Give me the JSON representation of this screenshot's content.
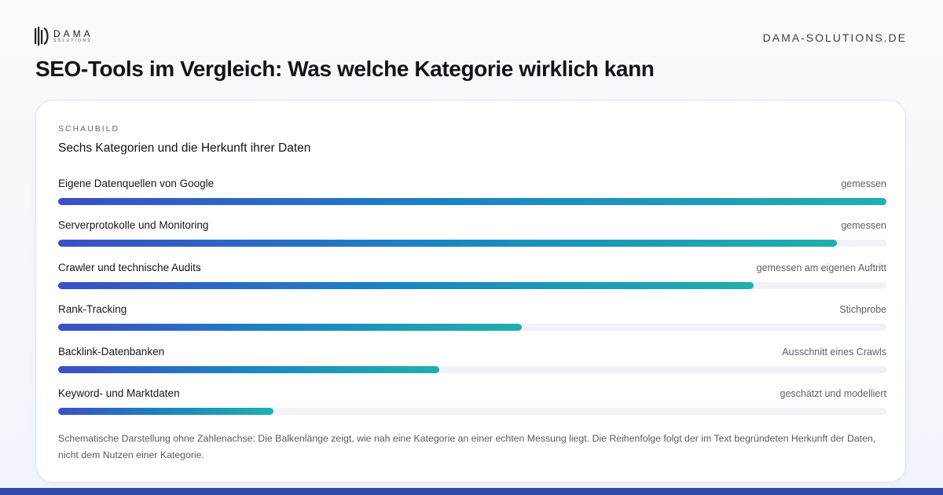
{
  "brand": {
    "name": "DAMA",
    "tagline": "SOLUTIONS"
  },
  "site_url": "DAMA-SOLUTIONS.DE",
  "page_title": "SEO-Tools im Vergleich: Was welche Kategorie wirklich kann",
  "colors": {
    "gradient_start": "#3b4fc4",
    "gradient_mid": "#1a86c2",
    "gradient_end": "#1fb0ad",
    "footer_bar": "#2f4aa8"
  },
  "card": {
    "eyebrow": "SCHAUBILD",
    "heading": "Sechs Kategorien und die Herkunft ihrer Daten",
    "note": "Schematische Darstellung ohne Zahlenachse: Die Balkenlänge zeigt, wie nah eine Kategorie an einer echten Messung liegt. Die Reihenfolge folgt der im Text begründeten Herkunft der Daten, nicht dem Nutzen einer Kategorie."
  },
  "chart_data": {
    "type": "bar",
    "orientation": "horizontal",
    "title": "Sechs Kategorien und die Herkunft ihrer Daten",
    "xlabel": "",
    "ylabel": "",
    "axis": "none",
    "ylim": [
      0,
      1
    ],
    "categories": [
      "Eigene Datenquellen von Google",
      "Serverprotokolle und Monitoring",
      "Crawler und technische Audits",
      "Rank-Tracking",
      "Backlink-Datenbanken",
      "Keyword- und Marktdaten"
    ],
    "values": [
      1.0,
      0.94,
      0.84,
      0.56,
      0.46,
      0.26
    ],
    "annotations": [
      "gemessen",
      "gemessen",
      "gemessen am eigenen Auftritt",
      "Stichprobe",
      "Ausschnitt eines Crawls",
      "geschätzt und modelliert"
    ]
  }
}
